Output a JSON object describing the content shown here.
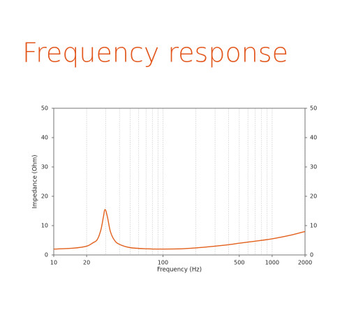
{
  "chart_data": {
    "type": "line",
    "title": "Frequency response",
    "x_label": "Frequency (Hz)",
    "y_label": "Impedance (Ohm)",
    "x": [
      10,
      15,
      20,
      23,
      25,
      27,
      28.5,
      29.5,
      31,
      33,
      36,
      40,
      50,
      70,
      100,
      150,
      200,
      300,
      400,
      500,
      700,
      1000,
      1500,
      2000
    ],
    "values": [
      2.0,
      2.3,
      3.0,
      4.2,
      5.2,
      8.5,
      13,
      15.5,
      13,
      8,
      5,
      3.6,
      2.5,
      2.1,
      2.0,
      2.1,
      2.4,
      3.0,
      3.5,
      4.0,
      4.7,
      5.5,
      6.8,
      8.0
    ],
    "color": "#e2601c",
    "title_color": "#e2561c",
    "xscale": "log",
    "xlim": [
      10,
      2000
    ],
    "xticks": [
      10,
      20,
      100,
      500,
      1000,
      2000
    ],
    "xgrid_minor": [
      20,
      30,
      40,
      50,
      60,
      70,
      80,
      90,
      100,
      200,
      300,
      400,
      500,
      600,
      700,
      800,
      900,
      1000,
      2000
    ],
    "ylim": [
      0,
      50
    ],
    "yticks": [
      0,
      10,
      20,
      30,
      40,
      50
    ],
    "y2lim": [
      0,
      50
    ],
    "y2ticks": [
      0,
      10,
      20,
      30,
      40,
      50
    ]
  }
}
